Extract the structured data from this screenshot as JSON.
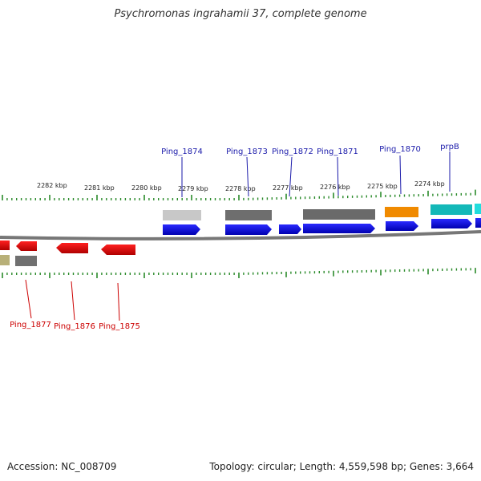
{
  "title": "Psychromonas ingrahamii 37, complete genome",
  "footer": {
    "accession": "Accession: NC_008709",
    "summary": "Topology: circular; Length: 4,559,598 bp; Genes: 3,664"
  },
  "scale_labels": [
    "2282 kbp",
    "2281 kbp",
    "2280 kbp",
    "2279 kbp",
    "2278 kbp",
    "2277 kbp",
    "2276 kbp",
    "2275 kbp",
    "2274 kbp"
  ],
  "gene_labels": {
    "top": [
      "Ping_1874",
      "Ping_1873",
      "Ping_1872",
      "Ping_1871",
      "Ping_1870",
      "prpB"
    ],
    "bottom": [
      "Ping_1877",
      "Ping_1876",
      "Ping_1875"
    ]
  },
  "colors": {
    "top_label": "#1a1aaa",
    "bottom_label": "#cc0000",
    "tick": "#2a8a2a",
    "gene_forward": "#0000dd",
    "gene_reverse": "#ee0000"
  }
}
